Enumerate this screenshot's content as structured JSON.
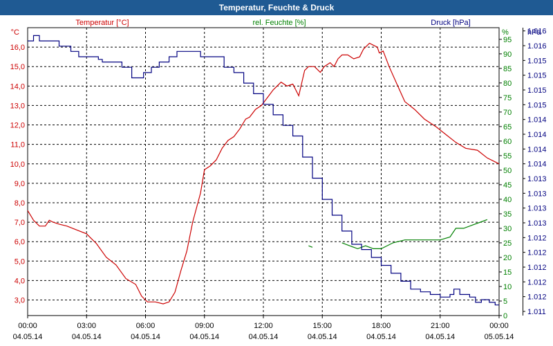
{
  "chart_data": {
    "type": "line",
    "title": "Temperatur, Feuchte & Druck",
    "x_labels": [
      {
        "time": "00:00",
        "date": "04.05.14"
      },
      {
        "time": "03:00",
        "date": "04.05.14"
      },
      {
        "time": "06:00",
        "date": "04.05.14"
      },
      {
        "time": "09:00",
        "date": "04.05.14"
      },
      {
        "time": "12:00",
        "date": "04.05.14"
      },
      {
        "time": "15:00",
        "date": "04.05.14"
      },
      {
        "time": "18:00",
        "date": "04.05.14"
      },
      {
        "time": "21:00",
        "date": "04.05.14"
      },
      {
        "time": "00:00",
        "date": "05.05.14"
      }
    ],
    "x_range_hours": [
      0,
      24
    ],
    "axes": {
      "temperature": {
        "label": "Temperatur [°C]",
        "unit": "°C",
        "range": [
          2.2,
          17.0
        ],
        "color": "#cc0000",
        "ticks": [
          "3,0",
          "4,0",
          "5,0",
          "6,0",
          "7,0",
          "8,0",
          "9,0",
          "10,0",
          "11,0",
          "12,0",
          "13,0",
          "14,0",
          "15,0",
          "16,0"
        ]
      },
      "humidity": {
        "label": "rel. Feuchte [%]",
        "unit": "%",
        "range": [
          0,
          99
        ],
        "color": "#008000",
        "ticks": [
          "0",
          "5",
          "10",
          "15",
          "20",
          "25",
          "30",
          "35",
          "40",
          "45",
          "50",
          "55",
          "60",
          "65",
          "70",
          "75",
          "80",
          "85",
          "90",
          "95"
        ]
      },
      "pressure": {
        "label": "Druck [hPa]",
        "unit": "hPa",
        "range": [
          1011.1,
          1016.55
        ],
        "color": "#000080",
        "ticks": [
          "1.011",
          "1.012",
          "1.012",
          "1.012",
          "1.012",
          "1.012",
          "1.013",
          "1.013",
          "1.013",
          "1.013",
          "1.014",
          "1.014",
          "1.014",
          "1.014",
          "1.015",
          "1.015",
          "1.015",
          "1.015",
          "1.016",
          "1.016"
        ]
      }
    },
    "series": [
      {
        "name": "Temperatur",
        "axis": "temperature",
        "color": "#cc0000",
        "x": [
          0,
          0.3,
          0.6,
          0.9,
          1.1,
          1.3,
          1.6,
          2.0,
          2.5,
          3.0,
          3.2,
          3.5,
          4.0,
          4.5,
          5.0,
          5.5,
          5.8,
          6.1,
          6.5,
          6.9,
          7.2,
          7.5,
          7.8,
          8.1,
          8.4,
          8.8,
          9.0,
          9.3,
          9.6,
          9.9,
          10.2,
          10.5,
          10.8,
          11.1,
          11.3,
          11.6,
          11.9,
          12.2,
          12.5,
          12.9,
          13.2,
          13.5,
          13.8,
          14.1,
          14.3,
          14.6,
          14.9,
          15.1,
          15.4,
          15.6,
          15.8,
          16.0,
          16.3,
          16.6,
          16.9,
          17.1,
          17.4,
          17.6,
          17.8,
          17.9,
          18.1,
          18.4,
          18.8,
          19.2,
          19.7,
          20.2,
          20.8,
          21.3,
          21.8,
          22.3,
          22.9,
          23.4,
          23.8,
          24.0
        ],
        "y": [
          7.6,
          7.1,
          6.8,
          6.8,
          7.1,
          7.0,
          6.9,
          6.8,
          6.6,
          6.4,
          6.2,
          5.9,
          5.2,
          4.8,
          4.1,
          3.8,
          3.2,
          2.9,
          2.9,
          2.8,
          2.9,
          3.4,
          4.5,
          5.5,
          7.0,
          8.5,
          9.7,
          9.9,
          10.2,
          10.8,
          11.2,
          11.4,
          11.8,
          12.3,
          12.4,
          12.8,
          13.0,
          13.4,
          13.8,
          14.2,
          14.0,
          14.1,
          13.5,
          14.8,
          15.0,
          15.0,
          14.7,
          15.0,
          15.2,
          15.0,
          15.4,
          15.6,
          15.6,
          15.4,
          15.5,
          15.9,
          16.2,
          16.1,
          16.0,
          15.7,
          15.8,
          15.0,
          14.1,
          13.2,
          12.8,
          12.3,
          11.9,
          11.5,
          11.1,
          10.8,
          10.7,
          10.3,
          10.1,
          10.0
        ]
      },
      {
        "name": "rel. Feuchte",
        "axis": "humidity",
        "color": "#008000",
        "segments": [
          {
            "x": [
              14.3,
              14.5
            ],
            "y": [
              24,
              23.5
            ]
          },
          {
            "x": [
              16.0,
              16.4,
              16.8,
              17.2,
              17.6,
              18.0,
              18.6,
              19.2,
              19.8,
              20.4,
              21.0,
              21.5,
              21.8,
              22.2,
              22.6,
              23.0,
              23.4
            ],
            "y": [
              25,
              24,
              23,
              24,
              23,
              23,
              25,
              26,
              26,
              26,
              26,
              27,
              30,
              30,
              31,
              32,
              33
            ]
          }
        ]
      },
      {
        "name": "Druck",
        "axis": "pressure",
        "color": "#000080",
        "x": [
          0,
          0.3,
          0.6,
          1.0,
          1.6,
          2.2,
          2.6,
          3.0,
          3.1,
          3.6,
          3.8,
          4.2,
          4.8,
          5.3,
          5.5,
          5.9,
          6.3,
          6.7,
          7.2,
          7.6,
          8.0,
          8.4,
          8.8,
          9.0,
          9.5,
          10.0,
          10.5,
          11.0,
          11.5,
          12.0,
          12.5,
          13.0,
          13.5,
          14.0,
          14.5,
          15.0,
          15.5,
          16.0,
          16.5,
          17.0,
          17.5,
          18.0,
          18.5,
          19.0,
          19.5,
          20.0,
          20.5,
          21.0,
          21.5,
          21.7,
          22.0,
          22.5,
          22.8,
          23.1,
          23.5,
          23.8,
          24.0
        ],
        "y": [
          1016.3,
          1016.4,
          1016.3,
          1016.3,
          1016.2,
          1016.1,
          1016.0,
          1016.0,
          1016.0,
          1015.95,
          1015.9,
          1015.9,
          1015.8,
          1015.6,
          1015.6,
          1015.7,
          1015.8,
          1015.9,
          1016.0,
          1016.1,
          1016.1,
          1016.1,
          1016.0,
          1016.0,
          1016.0,
          1015.8,
          1015.7,
          1015.5,
          1015.3,
          1015.1,
          1014.9,
          1014.7,
          1014.5,
          1014.1,
          1013.7,
          1013.3,
          1013.0,
          1012.7,
          1012.45,
          1012.35,
          1012.2,
          1012.05,
          1011.9,
          1011.75,
          1011.6,
          1011.55,
          1011.5,
          1011.45,
          1011.5,
          1011.6,
          1011.5,
          1011.45,
          1011.35,
          1011.4,
          1011.35,
          1011.3,
          1011.3
        ]
      }
    ]
  }
}
